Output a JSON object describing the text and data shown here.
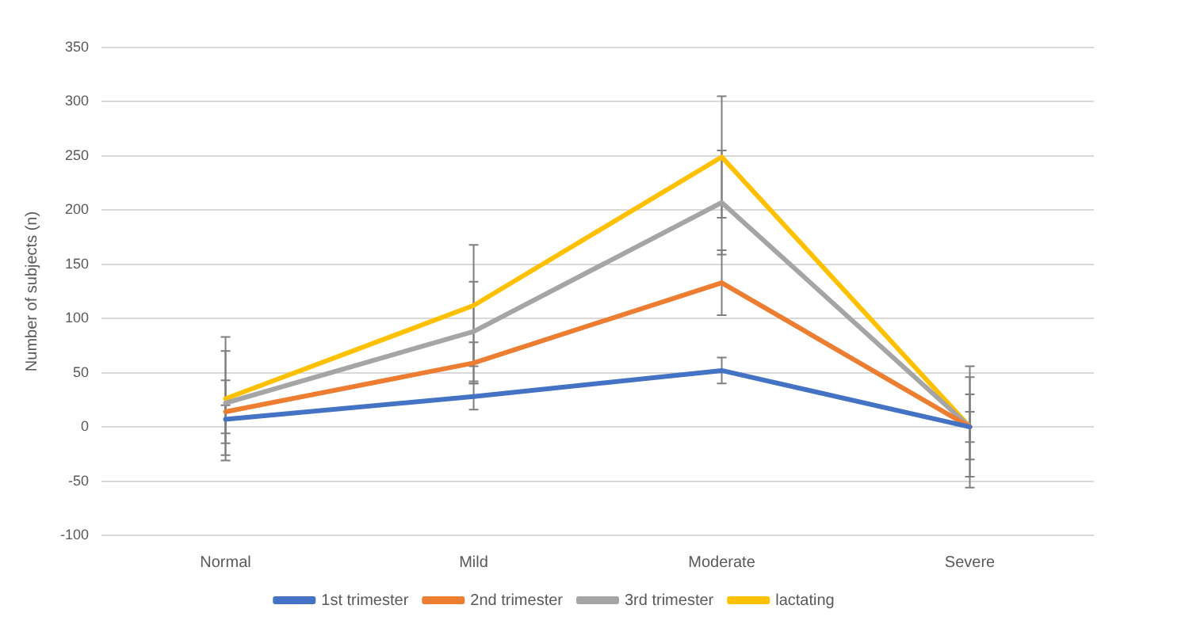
{
  "chart_data": {
    "type": "line",
    "ylabel": "Number of subjects (n)",
    "categories": [
      "Normal",
      "Mild",
      "Moderate",
      "Severe"
    ],
    "series": [
      {
        "name": "1st trimester",
        "color": "#4472c4",
        "values": [
          7,
          28,
          52,
          0
        ],
        "errors": [
          13,
          12,
          12,
          14
        ]
      },
      {
        "name": "2nd trimester",
        "color": "#ed7d31",
        "values": [
          14,
          59,
          133,
          0
        ],
        "errors": [
          29,
          19,
          30,
          30
        ]
      },
      {
        "name": "3rd trimester",
        "color": "#a5a5a5",
        "values": [
          22,
          88,
          207,
          0
        ],
        "errors": [
          48,
          46,
          48,
          46
        ]
      },
      {
        "name": "lactating",
        "color": "#ffc000",
        "values": [
          26,
          112,
          249,
          0
        ],
        "errors": [
          57,
          56,
          56,
          56
        ]
      }
    ],
    "ylim": [
      -100,
      350
    ],
    "yticks": [
      -100,
      -50,
      0,
      50,
      100,
      150,
      200,
      250,
      300,
      350
    ],
    "grid": "y",
    "legend": "bottom",
    "marker": "none",
    "line_style": "solid"
  }
}
